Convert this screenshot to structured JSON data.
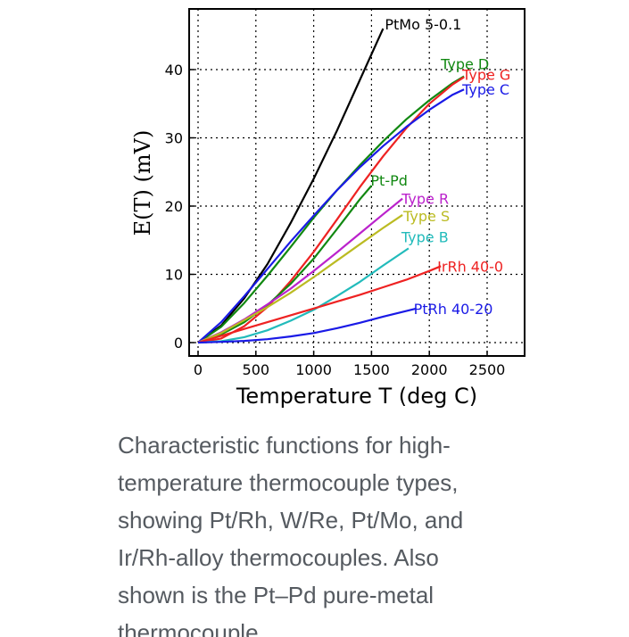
{
  "chart_data": {
    "type": "line",
    "xlabel": "Temperature T (deg C)",
    "ylabel": "E(T) (mV)",
    "xticks": [
      "0",
      "500",
      "1000",
      "1500",
      "2000",
      "2500"
    ],
    "yticks": [
      "0",
      "10",
      "20",
      "30",
      "40"
    ],
    "xlim": [
      -80,
      2800
    ],
    "ylim": [
      -2,
      49
    ],
    "grid": true,
    "series": [
      {
        "name": "PtMo 5-0.1",
        "color": "#000000",
        "x": [
          0,
          200,
          400,
          600,
          800,
          1000,
          1200,
          1400,
          1600
        ],
        "y": [
          0,
          2.5,
          6.5,
          11.5,
          17.5,
          24,
          31,
          38.5,
          46
        ]
      },
      {
        "name": "Type D",
        "color": "#118811",
        "x": [
          0,
          200,
          400,
          600,
          800,
          1000,
          1200,
          1400,
          1600,
          1800,
          2000,
          2200,
          2300
        ],
        "y": [
          0,
          2.3,
          5.8,
          9.8,
          14,
          18.3,
          22.3,
          26,
          29.5,
          32.7,
          35.5,
          38,
          39
        ]
      },
      {
        "name": "Type G",
        "color": "#ee2222",
        "x": [
          0,
          200,
          400,
          600,
          800,
          1000,
          1200,
          1400,
          1600,
          1800,
          2000,
          2200,
          2300
        ],
        "y": [
          0,
          0.6,
          2.4,
          5.2,
          9,
          13.3,
          18,
          22.8,
          27.3,
          31.4,
          35,
          37.8,
          38.9
        ]
      },
      {
        "name": "Type C",
        "color": "#1a1ae6",
        "x": [
          0,
          200,
          400,
          600,
          800,
          1000,
          1200,
          1400,
          1600,
          1800,
          2000,
          2200,
          2300
        ],
        "y": [
          0,
          3,
          6.8,
          10.8,
          14.8,
          18.6,
          22.3,
          25.7,
          28.8,
          31.6,
          34.1,
          36.3,
          37.1
        ]
      },
      {
        "name": "Pt-Pd",
        "color": "#118811",
        "x": [
          0,
          200,
          400,
          600,
          800,
          1000,
          1200,
          1400,
          1500
        ],
        "y": [
          0,
          1.2,
          3,
          5.5,
          8.6,
          12.3,
          16.6,
          21,
          23
        ]
      },
      {
        "name": "Type R",
        "color": "#bb22cc",
        "x": [
          0,
          200,
          400,
          600,
          800,
          1000,
          1200,
          1400,
          1600,
          1768
        ],
        "y": [
          0,
          1.5,
          3.4,
          5.6,
          7.9,
          10.5,
          13.2,
          16,
          18.8,
          21.1
        ]
      },
      {
        "name": "Type S",
        "color": "#bbbb22",
        "x": [
          0,
          200,
          400,
          600,
          800,
          1000,
          1200,
          1400,
          1600,
          1768
        ],
        "y": [
          0,
          1.4,
          3.3,
          5.2,
          7.3,
          9.6,
          12,
          14.4,
          16.8,
          18.7
        ]
      },
      {
        "name": "Type B",
        "color": "#22bbbb",
        "x": [
          0,
          200,
          400,
          600,
          800,
          1000,
          1200,
          1400,
          1600,
          1820
        ],
        "y": [
          0,
          0.2,
          0.8,
          1.8,
          3.2,
          4.8,
          6.8,
          8.9,
          11.3,
          13.8
        ]
      },
      {
        "name": "IrRh 40-0",
        "color": "#ee2222",
        "x": [
          0,
          200,
          400,
          600,
          800,
          1000,
          1200,
          1400,
          1600,
          1800,
          2000,
          2100
        ],
        "y": [
          0,
          1,
          2,
          3,
          4,
          5,
          6,
          7,
          8.1,
          9.2,
          10.5,
          11.2
        ]
      },
      {
        "name": "PtRh 40-20",
        "color": "#1a1ae6",
        "x": [
          0,
          200,
          400,
          600,
          800,
          1000,
          1200,
          1400,
          1600,
          1888
        ],
        "y": [
          0,
          0.1,
          0.25,
          0.5,
          0.9,
          1.4,
          2.1,
          2.9,
          3.8,
          5
        ]
      }
    ]
  },
  "caption": "Characteristic functions for high-temperature thermocouple types, showing Pt/Rh, W/Re, Pt/Mo, and Ir/Rh-alloy thermocouples. Also shown is the Pt–Pd pure-metal thermocouple."
}
